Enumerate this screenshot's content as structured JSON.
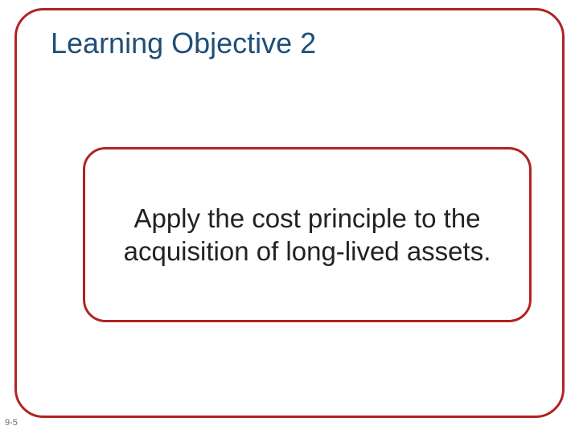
{
  "colors": {
    "frame": "#b22222",
    "title": "#1f4e79",
    "body": "#222222",
    "background": "#ffffff"
  },
  "title": "Learning Objective 2",
  "body": "Apply the cost principle to the acquisition of long-lived assets.",
  "page_number": "9-5",
  "layout": {
    "outer_frame_border_radius": 36,
    "inner_box_border_radius": 28,
    "border_width": 3,
    "title_fontsize": 36,
    "body_fontsize": 33
  }
}
